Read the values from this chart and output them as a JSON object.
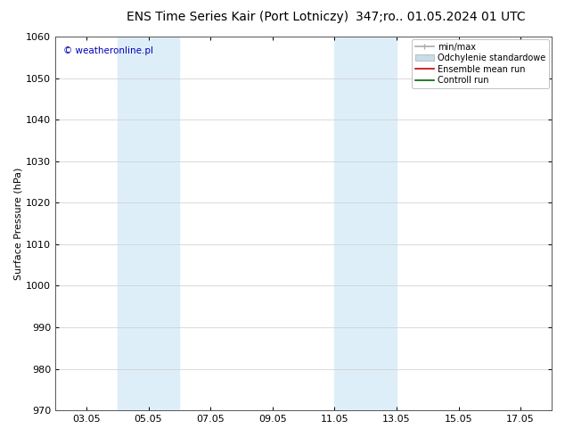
{
  "title_left": "ENS Time Series Kair (Port Lotniczy)",
  "title_right": "347;ro.. 01.05.2024 01 UTC",
  "ylabel": "Surface Pressure (hPa)",
  "ylim": [
    970,
    1060
  ],
  "yticks": [
    970,
    980,
    990,
    1000,
    1010,
    1020,
    1030,
    1040,
    1050,
    1060
  ],
  "xticks_labels": [
    "03.05",
    "05.05",
    "07.05",
    "09.05",
    "11.05",
    "13.05",
    "15.05",
    "17.05"
  ],
  "xticks_positions": [
    3,
    5,
    7,
    9,
    11,
    13,
    15,
    17
  ],
  "xlim": [
    2,
    18
  ],
  "shade_bands": [
    {
      "x_start": 4.0,
      "x_end": 6.0
    },
    {
      "x_start": 11.0,
      "x_end": 13.0
    }
  ],
  "shade_color": "#ddeef8",
  "background_color": "#ffffff",
  "watermark_text": "© weatheronline.pl",
  "watermark_color": "#0000bb",
  "legend_items": [
    {
      "label": "min/max",
      "color": "#aaaaaa",
      "type": "minmax"
    },
    {
      "label": "Odchylenie standardowe",
      "color": "#c8dcea",
      "type": "rect"
    },
    {
      "label": "Ensemble mean run",
      "color": "#cc0000",
      "type": "line"
    },
    {
      "label": "Controll run",
      "color": "#006600",
      "type": "line"
    }
  ],
  "title_fontsize": 10,
  "axis_label_fontsize": 8,
  "tick_fontsize": 8,
  "grid_color": "#cccccc",
  "spine_color": "#555555"
}
